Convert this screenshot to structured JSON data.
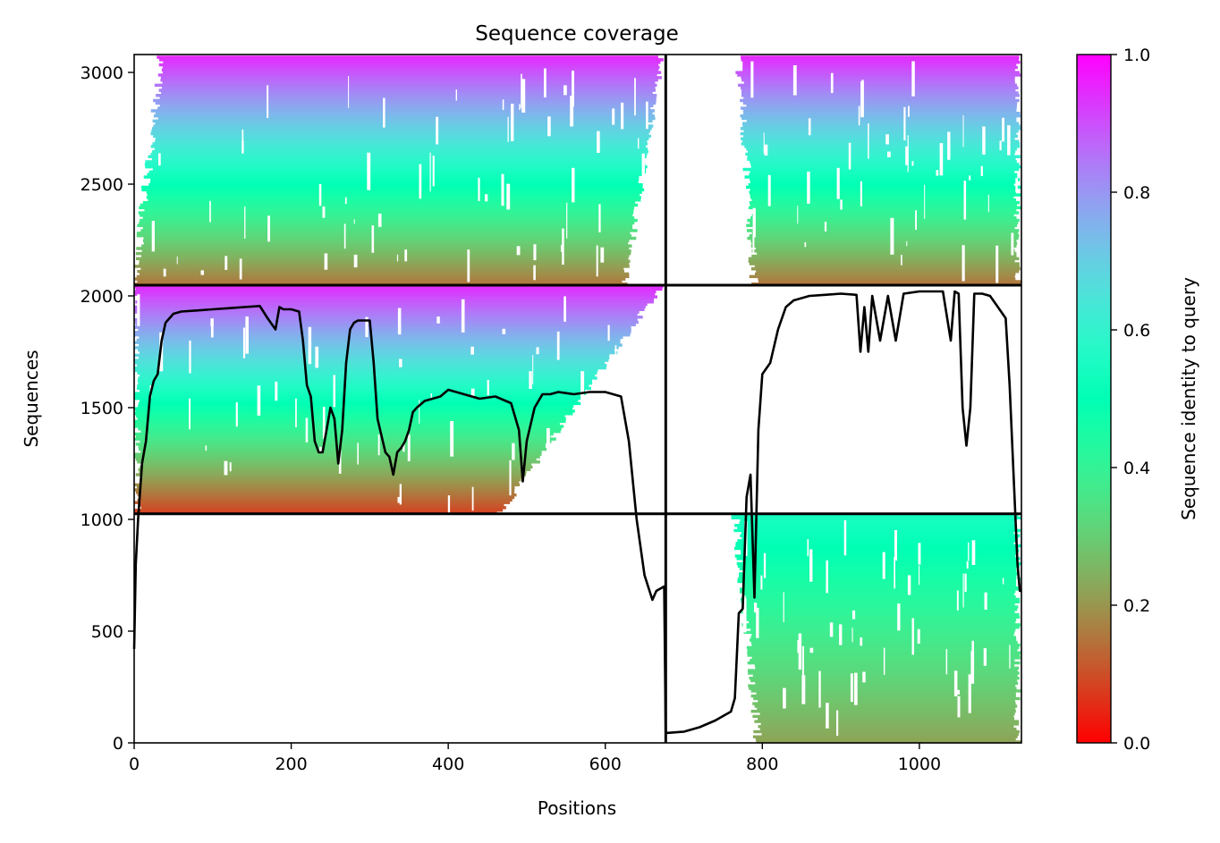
{
  "chart_data": {
    "type": "heatmap",
    "title": "Sequence coverage",
    "xlabel": "Positions",
    "ylabel": "Sequences",
    "xlim": [
      0,
      1130
    ],
    "ylim": [
      0,
      3080
    ],
    "x_ticks": [
      0,
      200,
      400,
      600,
      800,
      1000
    ],
    "y_ticks": [
      0,
      500,
      1000,
      1500,
      2000,
      2500,
      3000
    ],
    "colorbar": {
      "label": "Sequence identity to query",
      "colormap": "rainbow",
      "range": [
        0.0,
        1.0
      ],
      "ticks": [
        "0.0",
        "0.2",
        "0.4",
        "0.6",
        "0.8",
        "1.0"
      ]
    },
    "grid": false,
    "block_boundaries": {
      "x": [
        677
      ],
      "y": [
        1025,
        2048
      ]
    },
    "coverage_blocks": [
      {
        "name": "upper-left",
        "x_range": [
          0,
          677
        ],
        "y_range": [
          2048,
          3075
        ],
        "identity_top": 0.95,
        "identity_bottom": 0.15,
        "start_x": [
          35,
          0
        ],
        "end_x": [
          677,
          630
        ]
      },
      {
        "name": "upper-right",
        "x_range": [
          677,
          1130
        ],
        "y_range": [
          2048,
          3075
        ],
        "identity_top": 0.95,
        "identity_bottom": 0.15,
        "start_x": [
          770,
          790
        ],
        "end_x": [
          1130,
          1130
        ]
      },
      {
        "name": "middle-left",
        "x_range": [
          0,
          677
        ],
        "y_range": [
          1025,
          2048
        ],
        "identity_top": 0.95,
        "identity_bottom": 0.08,
        "start_x": [
          0,
          5
        ],
        "end_x": [
          677,
          470
        ]
      },
      {
        "name": "lower-right",
        "x_range": [
          677,
          1130
        ],
        "y_range": [
          0,
          1025
        ],
        "identity_top": 0.55,
        "identity_bottom": 0.22,
        "start_x": [
          765,
          795
        ],
        "end_x": [
          1130,
          1130
        ]
      }
    ],
    "series": [
      {
        "type": "line",
        "color": "#000000",
        "x": [
          0,
          2,
          5,
          10,
          15,
          20,
          25,
          30,
          35,
          40,
          50,
          60,
          80,
          100,
          120,
          140,
          160,
          170,
          180,
          185,
          190,
          200,
          210,
          215,
          220,
          225,
          230,
          235,
          240,
          245,
          250,
          255,
          260,
          265,
          270,
          275,
          280,
          285,
          290,
          300,
          305,
          310,
          320,
          325,
          330,
          335,
          340,
          345,
          350,
          355,
          360,
          370,
          380,
          390,
          400,
          420,
          440,
          460,
          480,
          490,
          495,
          500,
          510,
          520,
          530,
          540,
          560,
          580,
          600,
          620,
          630,
          640,
          650,
          660,
          665,
          670,
          675,
          677,
          680,
          700,
          720,
          740,
          760,
          765,
          770,
          775,
          780,
          785,
          790,
          795,
          800,
          810,
          820,
          830,
          840,
          860,
          880,
          900,
          920,
          925,
          930,
          935,
          940,
          950,
          960,
          970,
          980,
          1000,
          1020,
          1030,
          1040,
          1045,
          1050,
          1055,
          1060,
          1065,
          1070,
          1080,
          1090,
          1100,
          1110,
          1115,
          1120,
          1125,
          1128,
          1130
        ],
        "y": [
          420,
          800,
          1000,
          1250,
          1350,
          1550,
          1620,
          1650,
          1800,
          1880,
          1920,
          1930,
          1935,
          1940,
          1945,
          1950,
          1955,
          1900,
          1850,
          1950,
          1940,
          1940,
          1930,
          1800,
          1600,
          1550,
          1350,
          1300,
          1300,
          1400,
          1500,
          1450,
          1250,
          1400,
          1700,
          1850,
          1880,
          1890,
          1890,
          1890,
          1700,
          1450,
          1300,
          1280,
          1200,
          1300,
          1320,
          1350,
          1400,
          1480,
          1500,
          1530,
          1540,
          1550,
          1580,
          1560,
          1540,
          1550,
          1520,
          1400,
          1170,
          1350,
          1500,
          1560,
          1560,
          1570,
          1560,
          1570,
          1570,
          1550,
          1350,
          1000,
          750,
          640,
          680,
          690,
          700,
          45,
          45,
          50,
          70,
          100,
          140,
          200,
          580,
          600,
          1100,
          1200,
          650,
          1400,
          1650,
          1700,
          1850,
          1950,
          1980,
          2000,
          2005,
          2010,
          2005,
          1750,
          1950,
          1750,
          2000,
          1800,
          2000,
          1800,
          2010,
          2020,
          2020,
          2020,
          1800,
          2020,
          2010,
          1500,
          1330,
          1500,
          2010,
          2010,
          2000,
          1950,
          1900,
          1600,
          1200,
          800,
          680,
          680
        ]
      }
    ]
  }
}
